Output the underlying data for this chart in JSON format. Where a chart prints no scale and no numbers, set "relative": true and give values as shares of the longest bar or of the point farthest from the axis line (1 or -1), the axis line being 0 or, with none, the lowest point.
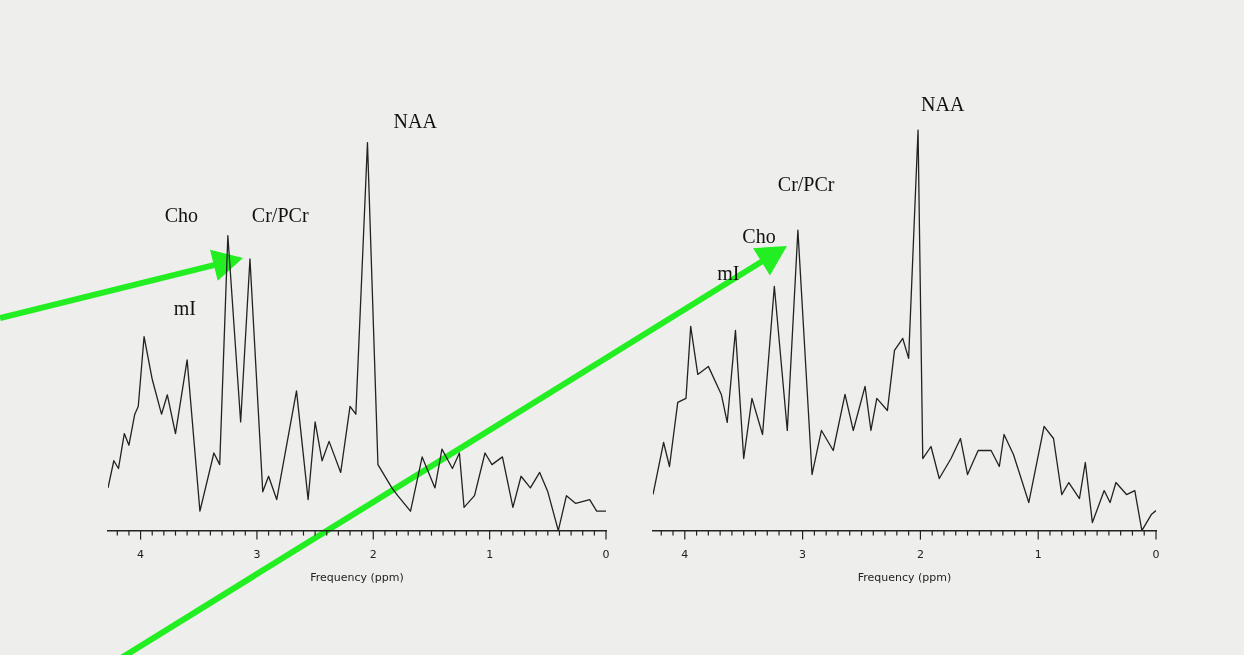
{
  "chart_data": [
    {
      "type": "line",
      "xlabel": "Frequency (ppm)",
      "relative": true,
      "marker": "none",
      "xlim": [
        4.28,
        0
      ],
      "xticks": [
        {
          "value": 4.2,
          "label": null
        },
        {
          "value": 4.1,
          "label": null
        },
        4,
        {
          "value": 3.9,
          "label": null
        },
        {
          "value": 3.8,
          "label": null
        },
        {
          "value": 3.7,
          "label": null
        },
        {
          "value": 3.6,
          "label": null
        },
        {
          "value": 3.5,
          "label": null
        },
        {
          "value": 3.4,
          "label": null
        },
        {
          "value": 3.3,
          "label": null
        },
        {
          "value": 3.2,
          "label": null
        },
        {
          "value": 3.1,
          "label": null
        },
        3,
        {
          "value": 2.9,
          "label": null
        },
        {
          "value": 2.8,
          "label": null
        },
        {
          "value": 2.7,
          "label": null
        },
        {
          "value": 2.6,
          "label": null
        },
        {
          "value": 2.5,
          "label": null
        },
        {
          "value": 2.4,
          "label": null
        },
        {
          "value": 2.3,
          "label": null
        },
        {
          "value": 2.2,
          "label": null
        },
        {
          "value": 2.1,
          "label": null
        },
        2,
        {
          "value": 1.9,
          "label": null
        },
        {
          "value": 1.8,
          "label": null
        },
        {
          "value": 1.7,
          "label": null
        },
        {
          "value": 1.6,
          "label": null
        },
        {
          "value": 1.5,
          "label": null
        },
        {
          "value": 1.4,
          "label": null
        },
        {
          "value": 1.3,
          "label": null
        },
        {
          "value": 1.2,
          "label": null
        },
        {
          "value": 1.1,
          "label": null
        },
        1,
        {
          "value": 0.9,
          "label": null
        },
        {
          "value": 0.8,
          "label": null
        },
        {
          "value": 0.7,
          "label": null
        },
        {
          "value": 0.6,
          "label": null
        },
        {
          "value": 0.5,
          "label": null
        },
        {
          "value": 0.4,
          "label": null
        },
        {
          "value": 0.3,
          "label": null
        },
        {
          "value": 0.2,
          "label": null
        },
        {
          "value": 0.1,
          "label": null
        },
        0
      ],
      "x": [
        4.28,
        4.23,
        4.19,
        4.14,
        4.1,
        4.05,
        4.02,
        3.97,
        3.9,
        3.82,
        3.77,
        3.7,
        3.6,
        3.49,
        3.37,
        3.32,
        3.25,
        3.14,
        3.06,
        2.95,
        2.9,
        2.83,
        2.66,
        2.56,
        2.5,
        2.44,
        2.38,
        2.28,
        2.2,
        2.15,
        2.05,
        1.96,
        1.84,
        1.79,
        1.68,
        1.58,
        1.47,
        1.41,
        1.32,
        1.26,
        1.22,
        1.13,
        1.04,
        0.98,
        0.89,
        0.8,
        0.73,
        0.65,
        0.57,
        0.5,
        0.41,
        0.34,
        0.26,
        0.14,
        0.08,
        0.0
      ],
      "series": [
        {
          "color": "#222222",
          "values": [
            0.11,
            0.18,
            0.16,
            0.25,
            0.22,
            0.3,
            0.32,
            0.5,
            0.39,
            0.3,
            0.35,
            0.25,
            0.44,
            0.05,
            0.2,
            0.17,
            0.76,
            0.28,
            0.7,
            0.1,
            0.14,
            0.08,
            0.36,
            0.08,
            0.28,
            0.18,
            0.23,
            0.15,
            0.32,
            0.3,
            1.0,
            0.17,
            0.11,
            0.09,
            0.05,
            0.19,
            0.11,
            0.21,
            0.16,
            0.2,
            0.06,
            0.09,
            0.2,
            0.17,
            0.19,
            0.06,
            0.14,
            0.11,
            0.15,
            0.1,
            0.0,
            0.09,
            0.07,
            0.08,
            0.05,
            0.05
          ]
        }
      ],
      "annotations": [
        "Cho",
        "Cr/PCr",
        "NAA",
        "mI"
      ]
    },
    {
      "type": "line",
      "xlabel": "Frequency (ppm)",
      "relative": true,
      "marker": "none",
      "xlim": [
        4.27,
        0
      ],
      "xticks": [
        {
          "value": 4.2,
          "label": null
        },
        {
          "value": 4.1,
          "label": null
        },
        4,
        {
          "value": 3.9,
          "label": null
        },
        {
          "value": 3.8,
          "label": null
        },
        {
          "value": 3.7,
          "label": null
        },
        {
          "value": 3.6,
          "label": null
        },
        {
          "value": 3.5,
          "label": null
        },
        {
          "value": 3.4,
          "label": null
        },
        {
          "value": 3.3,
          "label": null
        },
        {
          "value": 3.2,
          "label": null
        },
        {
          "value": 3.1,
          "label": null
        },
        3,
        {
          "value": 2.9,
          "label": null
        },
        {
          "value": 2.8,
          "label": null
        },
        {
          "value": 2.7,
          "label": null
        },
        {
          "value": 2.6,
          "label": null
        },
        {
          "value": 2.5,
          "label": null
        },
        {
          "value": 2.4,
          "label": null
        },
        {
          "value": 2.3,
          "label": null
        },
        {
          "value": 2.2,
          "label": null
        },
        {
          "value": 2.1,
          "label": null
        },
        2,
        {
          "value": 1.9,
          "label": null
        },
        {
          "value": 1.8,
          "label": null
        },
        {
          "value": 1.7,
          "label": null
        },
        {
          "value": 1.6,
          "label": null
        },
        {
          "value": 1.5,
          "label": null
        },
        {
          "value": 1.4,
          "label": null
        },
        {
          "value": 1.3,
          "label": null
        },
        {
          "value": 1.2,
          "label": null
        },
        {
          "value": 1.1,
          "label": null
        },
        1,
        {
          "value": 0.9,
          "label": null
        },
        {
          "value": 0.8,
          "label": null
        },
        {
          "value": 0.7,
          "label": null
        },
        {
          "value": 0.6,
          "label": null
        },
        {
          "value": 0.5,
          "label": null
        },
        {
          "value": 0.4,
          "label": null
        },
        {
          "value": 0.3,
          "label": null
        },
        {
          "value": 0.2,
          "label": null
        },
        {
          "value": 0.1,
          "label": null
        },
        0
      ],
      "x": [
        4.27,
        4.18,
        4.13,
        4.06,
        3.99,
        3.95,
        3.89,
        3.8,
        3.69,
        3.64,
        3.57,
        3.5,
        3.43,
        3.34,
        3.24,
        3.13,
        3.04,
        2.92,
        2.84,
        2.74,
        2.64,
        2.57,
        2.47,
        2.42,
        2.37,
        2.28,
        2.22,
        2.15,
        2.1,
        2.02,
        1.98,
        1.91,
        1.84,
        1.74,
        1.66,
        1.6,
        1.51,
        1.4,
        1.33,
        1.29,
        1.21,
        1.08,
        0.95,
        0.87,
        0.8,
        0.74,
        0.65,
        0.6,
        0.54,
        0.44,
        0.39,
        0.34,
        0.25,
        0.18,
        0.12,
        0.04,
        0.0
      ],
      "series": [
        {
          "color": "#222222",
          "values": [
            0.09,
            0.22,
            0.16,
            0.32,
            0.33,
            0.51,
            0.39,
            0.41,
            0.34,
            0.27,
            0.5,
            0.18,
            0.33,
            0.24,
            0.61,
            0.25,
            0.75,
            0.14,
            0.25,
            0.2,
            0.34,
            0.25,
            0.36,
            0.25,
            0.33,
            0.3,
            0.45,
            0.48,
            0.43,
            1.0,
            0.18,
            0.21,
            0.13,
            0.18,
            0.23,
            0.14,
            0.2,
            0.2,
            0.16,
            0.24,
            0.19,
            0.07,
            0.26,
            0.23,
            0.09,
            0.12,
            0.08,
            0.17,
            0.02,
            0.1,
            0.07,
            0.12,
            0.09,
            0.1,
            0.0,
            0.04,
            0.05
          ]
        }
      ],
      "annotations": [
        "Cho",
        "Cr/PCr",
        "NAA",
        "mI"
      ]
    }
  ]
}
